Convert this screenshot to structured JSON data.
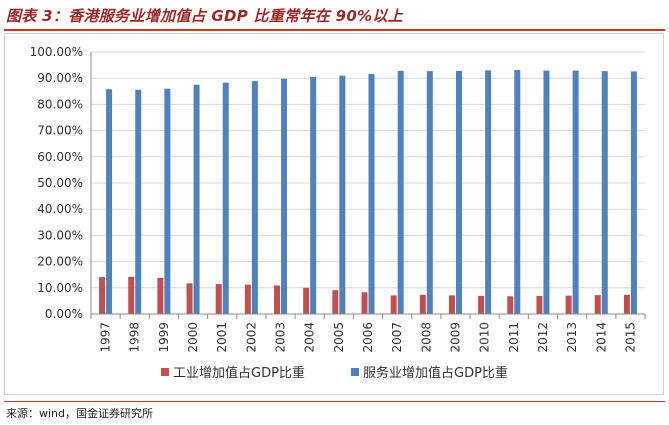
{
  "figure": {
    "title": "图表 3：香港服务业增加值占 GDP 比重常年在 90%以上",
    "source": "来源：wind，国金证券研究所"
  },
  "colors": {
    "title": "#9b2a26",
    "industry": "#c0504d",
    "services": "#4f81bd",
    "grid": "#d9d9d9"
  },
  "chart_data": {
    "type": "bar",
    "categories": [
      "1997",
      "1998",
      "1999",
      "2000",
      "2001",
      "2002",
      "2003",
      "2004",
      "2005",
      "2006",
      "2007",
      "2008",
      "2009",
      "2010",
      "2011",
      "2012",
      "2013",
      "2014",
      "2015"
    ],
    "series": [
      {
        "name": "工业增加值占GDP比重",
        "values": [
          14.1,
          14.2,
          13.8,
          11.7,
          11.4,
          11.2,
          10.9,
          10.0,
          9.1,
          8.3,
          7.1,
          7.3,
          7.1,
          6.9,
          6.8,
          6.9,
          7.0,
          7.2,
          7.3
        ]
      },
      {
        "name": "服务业增加值占GDP比重",
        "values": [
          85.8,
          85.6,
          86.0,
          87.5,
          88.3,
          88.9,
          89.8,
          90.5,
          91.0,
          91.6,
          92.8,
          92.7,
          92.8,
          93.0,
          93.1,
          92.9,
          92.9,
          92.7,
          92.6
        ]
      }
    ],
    "yticks": [
      "0.00%",
      "10.00%",
      "20.00%",
      "30.00%",
      "40.00%",
      "50.00%",
      "60.00%",
      "70.00%",
      "80.00%",
      "90.00%",
      "100.00%"
    ],
    "ylim": [
      0,
      100
    ],
    "grid": true,
    "legend": "bottom"
  }
}
